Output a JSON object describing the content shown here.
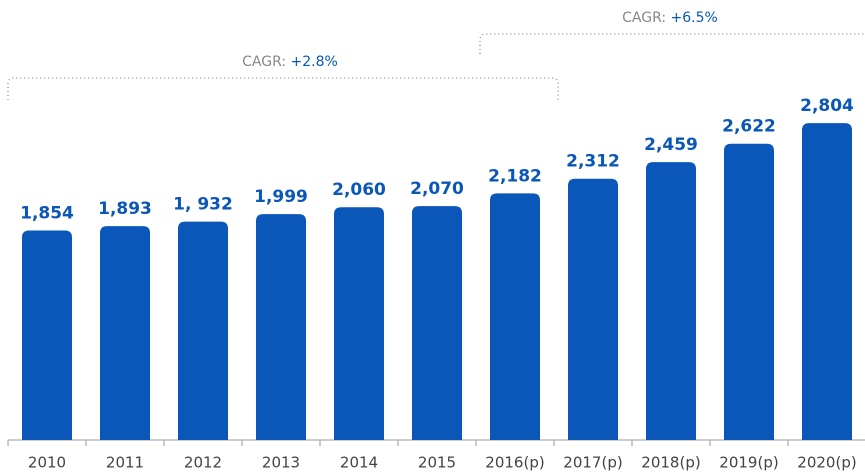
{
  "chart_data": {
    "type": "bar",
    "categories": [
      "2010",
      "2011",
      "2012",
      "2013",
      "2014",
      "2015",
      "2016(p)",
      "2017(p)",
      "2018(p)",
      "2019(p)",
      "2020(p)"
    ],
    "values": [
      1854,
      1893,
      1932,
      1999,
      2060,
      2070,
      2182,
      2312,
      2459,
      2622,
      2804
    ],
    "value_labels": [
      "1,854",
      "1,893",
      "1, 932",
      "1,999",
      "2,060",
      "2,070",
      "2,182",
      "2,312",
      "2,459",
      "2,622",
      "2,804"
    ],
    "color": "#0a56b9",
    "ylim": [
      0,
      3500
    ],
    "annotations": [
      {
        "label": "CAGR:",
        "value": "+2.8%"
      },
      {
        "label": "CAGR:",
        "value": "+6.5%"
      }
    ]
  }
}
